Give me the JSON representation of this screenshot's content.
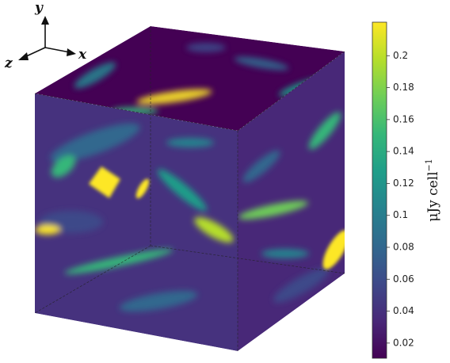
{
  "chart_data": {
    "type": "volume-render",
    "axes_labels": {
      "x": "x",
      "y": "y",
      "z": "z"
    },
    "colorbar": {
      "label": "μJy cell",
      "exponent": "−1",
      "lim": [
        0.0105,
        0.221
      ],
      "ticks": [
        0.02,
        0.04,
        0.06,
        0.08,
        0.1,
        0.12,
        0.14,
        0.16,
        0.18,
        0.2
      ],
      "colormap": [
        "#440154",
        "#482878",
        "#3e4989",
        "#31688e",
        "#26828e",
        "#1f9e89",
        "#35b779",
        "#6ece58",
        "#b5de2b",
        "#fde725"
      ]
    }
  }
}
